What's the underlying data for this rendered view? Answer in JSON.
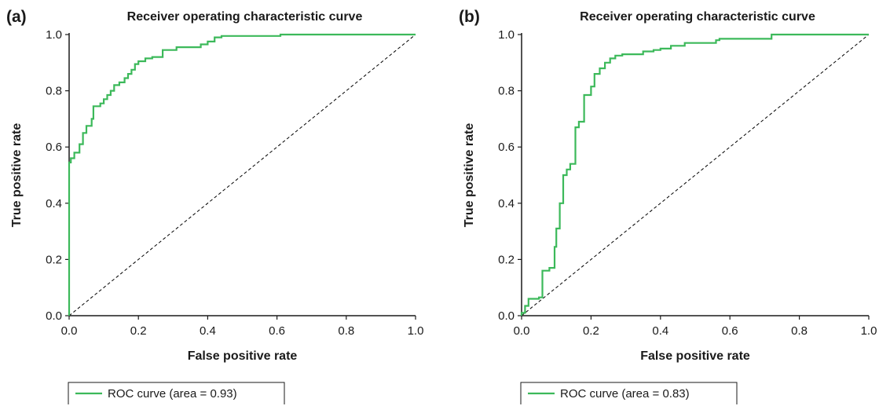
{
  "chart_data": [
    {
      "type": "line",
      "panel_label": "(a)",
      "title": "Receiver operating characteristic curve",
      "xlabel": "False positive rate",
      "ylabel": "True positive rate",
      "xlim": [
        0.0,
        1.0
      ],
      "ylim": [
        0.0,
        1.0
      ],
      "x_ticks": [
        "0.0",
        "0.2",
        "0.4",
        "0.6",
        "0.8",
        "1.0"
      ],
      "y_ticks": [
        "0.0",
        "0.2",
        "0.4",
        "0.6",
        "0.8",
        "1.0"
      ],
      "grid": false,
      "legend_position": "bottom-left",
      "diagonal": {
        "style": "dashed",
        "color": "#000000",
        "x": [
          0,
          1
        ],
        "y": [
          0,
          1
        ]
      },
      "series": [
        {
          "name": "ROC curve (area = 0.93)",
          "color": "#3cb95a",
          "x": [
            0.0,
            0.0,
            0.005,
            0.005,
            0.015,
            0.015,
            0.03,
            0.03,
            0.04,
            0.04,
            0.05,
            0.05,
            0.065,
            0.065,
            0.07,
            0.07,
            0.09,
            0.09,
            0.1,
            0.1,
            0.11,
            0.11,
            0.12,
            0.12,
            0.13,
            0.13,
            0.145,
            0.145,
            0.16,
            0.16,
            0.17,
            0.17,
            0.18,
            0.18,
            0.19,
            0.19,
            0.2,
            0.2,
            0.22,
            0.22,
            0.24,
            0.24,
            0.27,
            0.27,
            0.31,
            0.31,
            0.38,
            0.38,
            0.4,
            0.4,
            0.42,
            0.42,
            0.44,
            0.44,
            0.61,
            0.61,
            1.0
          ],
          "y": [
            0.0,
            0.545,
            0.545,
            0.56,
            0.56,
            0.58,
            0.58,
            0.61,
            0.61,
            0.65,
            0.65,
            0.675,
            0.675,
            0.7,
            0.7,
            0.745,
            0.745,
            0.755,
            0.755,
            0.77,
            0.77,
            0.785,
            0.785,
            0.8,
            0.8,
            0.82,
            0.82,
            0.83,
            0.83,
            0.845,
            0.845,
            0.86,
            0.86,
            0.875,
            0.875,
            0.895,
            0.895,
            0.905,
            0.905,
            0.915,
            0.915,
            0.92,
            0.92,
            0.945,
            0.945,
            0.955,
            0.955,
            0.965,
            0.965,
            0.975,
            0.975,
            0.99,
            0.99,
            0.995,
            0.995,
            1.0,
            1.0
          ]
        }
      ]
    },
    {
      "type": "line",
      "panel_label": "(b)",
      "title": "Receiver operating characteristic curve",
      "xlabel": "False positive rate",
      "ylabel": "True positive rate",
      "xlim": [
        0.0,
        1.0
      ],
      "ylim": [
        0.0,
        1.0
      ],
      "x_ticks": [
        "0.0",
        "0.2",
        "0.4",
        "0.6",
        "0.8",
        "1.0"
      ],
      "y_ticks": [
        "0.0",
        "0.2",
        "0.4",
        "0.6",
        "0.8",
        "1.0"
      ],
      "grid": false,
      "legend_position": "bottom-left",
      "diagonal": {
        "style": "dashed",
        "color": "#000000",
        "x": [
          0,
          1
        ],
        "y": [
          0,
          1
        ]
      },
      "series": [
        {
          "name": "ROC curve (area = 0.83)",
          "color": "#3cb95a",
          "x": [
            0.0,
            0.0,
            0.01,
            0.01,
            0.02,
            0.02,
            0.05,
            0.05,
            0.06,
            0.06,
            0.08,
            0.08,
            0.095,
            0.095,
            0.1,
            0.1,
            0.11,
            0.11,
            0.12,
            0.12,
            0.13,
            0.13,
            0.14,
            0.14,
            0.155,
            0.155,
            0.165,
            0.165,
            0.18,
            0.18,
            0.2,
            0.2,
            0.21,
            0.21,
            0.225,
            0.225,
            0.24,
            0.24,
            0.255,
            0.255,
            0.27,
            0.27,
            0.29,
            0.29,
            0.35,
            0.35,
            0.38,
            0.38,
            0.4,
            0.4,
            0.43,
            0.43,
            0.47,
            0.47,
            0.56,
            0.56,
            0.57,
            0.57,
            0.72,
            0.72,
            1.0
          ],
          "y": [
            0.0,
            0.01,
            0.01,
            0.035,
            0.035,
            0.06,
            0.06,
            0.065,
            0.065,
            0.16,
            0.16,
            0.17,
            0.17,
            0.245,
            0.245,
            0.31,
            0.31,
            0.4,
            0.4,
            0.5,
            0.5,
            0.52,
            0.52,
            0.54,
            0.54,
            0.67,
            0.67,
            0.69,
            0.69,
            0.785,
            0.785,
            0.815,
            0.815,
            0.86,
            0.86,
            0.88,
            0.88,
            0.9,
            0.9,
            0.915,
            0.915,
            0.925,
            0.925,
            0.93,
            0.93,
            0.94,
            0.94,
            0.945,
            0.945,
            0.95,
            0.95,
            0.96,
            0.96,
            0.97,
            0.97,
            0.98,
            0.98,
            0.985,
            0.985,
            1.0,
            1.0
          ]
        }
      ]
    }
  ]
}
